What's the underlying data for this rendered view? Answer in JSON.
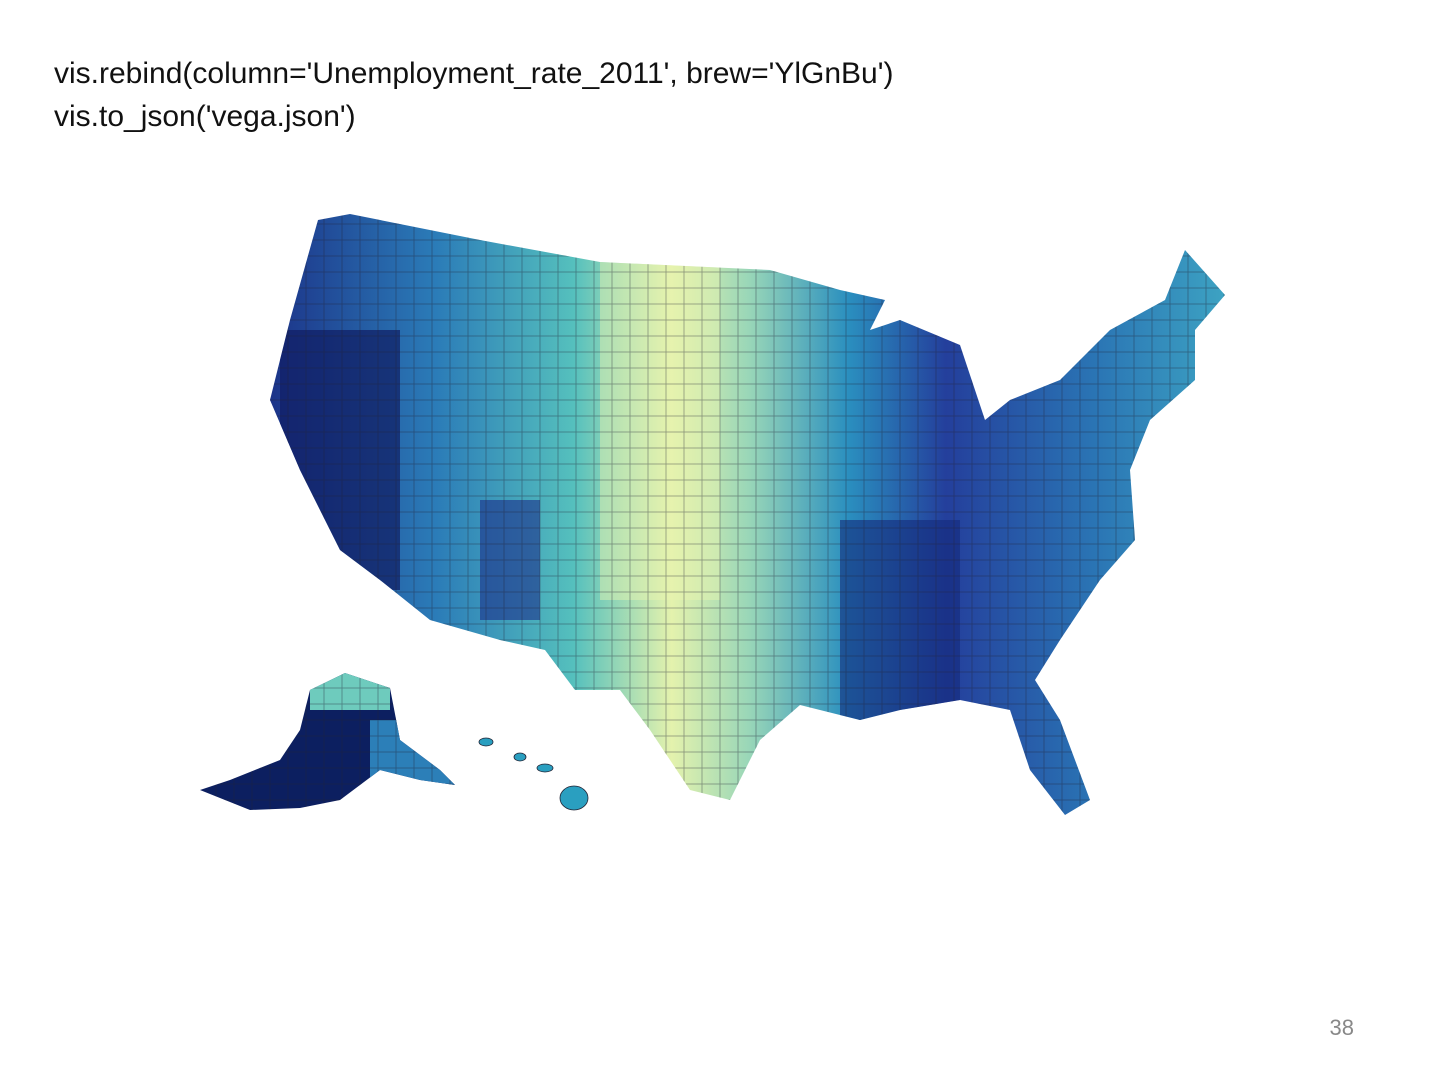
{
  "code": [
    "vis.rebind(column='Unemployment_rate_2011', brew='YlGnBu')",
    "vis.to_json('vega.json')"
  ],
  "page_number": "38"
}
